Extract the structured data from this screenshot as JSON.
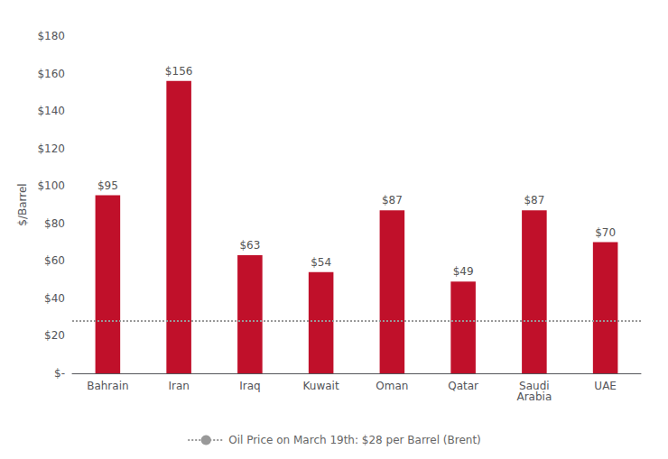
{
  "chart_data": {
    "type": "bar",
    "categories": [
      "Bahrain",
      "Iran",
      "Iraq",
      "Kuwait",
      "Oman",
      "Qatar",
      "Saudi\nArabia",
      "UAE"
    ],
    "values": [
      95,
      156,
      63,
      54,
      87,
      49,
      87,
      70
    ],
    "value_labels": [
      "$95",
      "$156",
      "$63",
      "$54",
      "$87",
      "$49",
      "$87",
      "$70"
    ],
    "data_labels": true,
    "color": "#C0102A",
    "ylabel": "$/Barrel",
    "ylim": [
      0,
      180
    ],
    "yticks": [
      {
        "value": 0,
        "label": "$-"
      },
      {
        "value": 20,
        "label": "$20"
      },
      {
        "value": 40,
        "label": "$40"
      },
      {
        "value": 60,
        "label": "$60"
      },
      {
        "value": 80,
        "label": "$80"
      },
      {
        "value": 100,
        "label": "$100"
      },
      {
        "value": 120,
        "label": "$120"
      },
      {
        "value": 140,
        "label": "$140"
      },
      {
        "value": 160,
        "label": "$160"
      },
      {
        "value": 180,
        "label": "$180"
      }
    ],
    "grid": false,
    "legend": "bottom",
    "reference_lines": [
      {
        "value": 28,
        "label": "Oil Price on March 19th: $28 per Barrel (Brent)",
        "color": "#999999",
        "line_style": "dotted"
      }
    ]
  }
}
